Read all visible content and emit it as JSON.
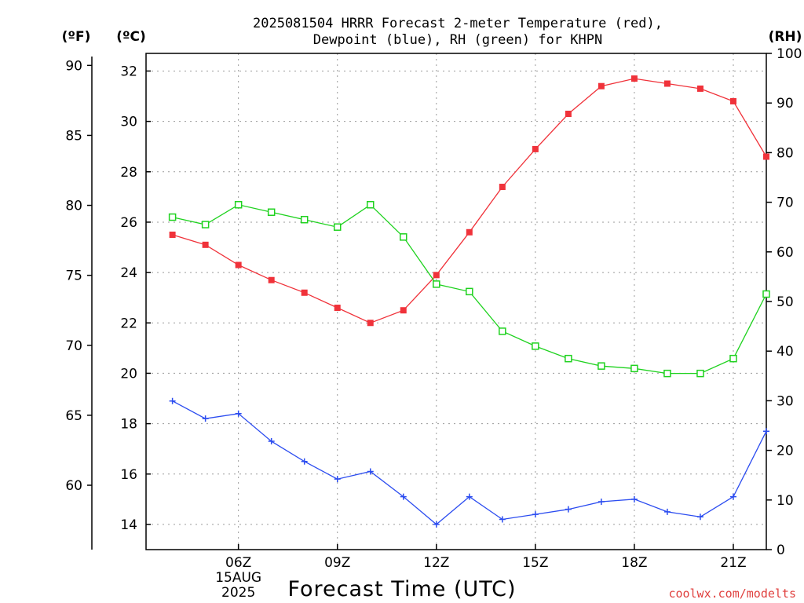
{
  "title_line1": "2025081504 HRRR Forecast 2-meter Temperature (red),",
  "title_line2": "Dewpoint (blue), RH (green) for KHPN",
  "xlabel": "Forecast Time (UTC)",
  "credit": "coolwx.com/modelts",
  "units": {
    "fahrenheit": "(ºF)",
    "celsius": "(ºC)",
    "rh": "(RH)"
  },
  "colors": {
    "temperature": "#f0323a",
    "dewpoint": "#2b4cf0",
    "rh": "#1fd21f"
  },
  "chart_data": {
    "type": "line",
    "x": [
      4,
      5,
      6,
      7,
      8,
      9,
      10,
      11,
      12,
      13,
      14,
      15,
      16,
      17,
      18,
      19,
      20,
      21,
      22
    ],
    "x_tick_labels": [
      {
        "x": 6,
        "lines": [
          "06Z",
          "15AUG",
          "2025"
        ]
      },
      {
        "x": 9,
        "lines": [
          "09Z"
        ]
      },
      {
        "x": 12,
        "lines": [
          "12Z"
        ]
      },
      {
        "x": 15,
        "lines": [
          "15Z"
        ]
      },
      {
        "x": 18,
        "lines": [
          "18Z"
        ]
      },
      {
        "x": 21,
        "lines": [
          "21Z"
        ]
      }
    ],
    "celsius_axis": {
      "range": [
        13,
        32.7
      ],
      "ticks": [
        14,
        16,
        18,
        20,
        22,
        24,
        26,
        28,
        30,
        32
      ]
    },
    "fahrenheit_axis": {
      "ticks": [
        60,
        65,
        70,
        75,
        80,
        85,
        90
      ]
    },
    "rh_axis": {
      "range": [
        0,
        100
      ],
      "ticks": [
        0,
        10,
        20,
        30,
        40,
        50,
        60,
        70,
        80,
        90,
        100
      ]
    },
    "grid": true,
    "series": [
      {
        "marker": "filled-square",
        "axis": "celsius",
        "values": [
          25.5,
          25.1,
          24.3,
          23.7,
          23.2,
          22.6,
          22.0,
          22.5,
          23.9,
          25.6,
          27.4,
          28.9,
          30.3,
          31.4,
          31.7,
          31.5,
          31.3,
          30.8,
          28.6
        ]
      },
      {
        "marker": "plus",
        "axis": "celsius",
        "values": [
          18.9,
          18.2,
          18.4,
          17.3,
          16.5,
          15.8,
          16.1,
          15.1,
          14.0,
          15.1,
          14.2,
          14.4,
          14.6,
          14.9,
          15.0,
          14.5,
          14.3,
          15.1,
          17.7
        ]
      },
      {
        "marker": "open-square",
        "axis": "rh",
        "values": [
          67,
          65.5,
          69.5,
          68,
          66.5,
          65,
          69.5,
          63,
          53.5,
          52,
          44,
          41,
          38.5,
          37,
          36.5,
          35.5,
          35.5,
          38.5,
          51.5
        ]
      }
    ]
  }
}
